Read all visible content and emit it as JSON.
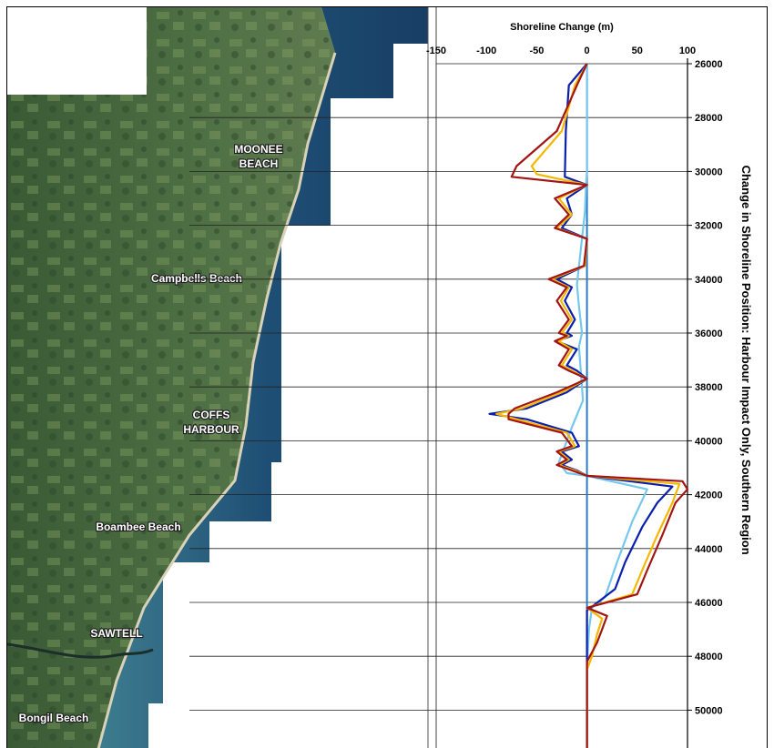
{
  "map": {
    "labels": [
      {
        "id": "moonee",
        "lines": [
          "MOONEE",
          "BEACH"
        ]
      },
      {
        "id": "campbells",
        "lines": [
          "Campbells Beach"
        ]
      },
      {
        "id": "coffs",
        "lines": [
          "COFFS",
          "HARBOUR"
        ]
      },
      {
        "id": "boambee",
        "lines": [
          "Boambee Beach"
        ]
      },
      {
        "id": "sawtell",
        "lines": [
          "SAWTELL"
        ]
      },
      {
        "id": "bongil",
        "lines": [
          "Bongil Beach"
        ]
      }
    ]
  },
  "colors": {
    "dark_red": "#a31515",
    "orange": "#f5b800",
    "dark_blue": "#0a1fae",
    "light_blue": "#74c8ee",
    "zero_line": "#2a7cc7"
  },
  "chart_data": {
    "type": "line",
    "title": "Shoreline Change (m)",
    "ylabel": "Change in Shoreline Position: Harbour Impact Only, Southern Region",
    "xlim": [
      -150,
      100
    ],
    "ylim": [
      26000,
      51500
    ],
    "y_inverted": true,
    "x_ticks": [
      -150,
      -100,
      -50,
      0,
      50,
      100
    ],
    "y_ticks": [
      26000,
      28000,
      30000,
      32000,
      34000,
      36000,
      38000,
      40000,
      42000,
      44000,
      46000,
      48000,
      50000
    ],
    "series": [
      {
        "color_key": "light_blue",
        "points": [
          [
            0,
            26000
          ],
          [
            0,
            30000
          ],
          [
            -1,
            30500
          ],
          [
            -2,
            31500
          ],
          [
            -5,
            32500
          ],
          [
            -10,
            34200
          ],
          [
            -8,
            35000
          ],
          [
            -5,
            36000
          ],
          [
            -8,
            36500
          ],
          [
            -6,
            37500
          ],
          [
            -4,
            38500
          ],
          [
            -15,
            39500
          ],
          [
            -28,
            40800
          ],
          [
            -20,
            41200
          ],
          [
            0,
            41300
          ],
          [
            60,
            41800
          ],
          [
            45,
            43000
          ],
          [
            30,
            44500
          ],
          [
            18,
            45800
          ],
          [
            5,
            46200
          ],
          [
            2,
            47000
          ],
          [
            0,
            48500
          ],
          [
            0,
            51500
          ]
        ]
      },
      {
        "color_key": "dark_blue",
        "points": [
          [
            0,
            26000
          ],
          [
            -18,
            26800
          ],
          [
            -21,
            28500
          ],
          [
            -22,
            30200
          ],
          [
            0,
            30500
          ],
          [
            -20,
            31000
          ],
          [
            -15,
            31600
          ],
          [
            -25,
            32100
          ],
          [
            0,
            32500
          ],
          [
            -2,
            33500
          ],
          [
            -30,
            34000
          ],
          [
            -15,
            34300
          ],
          [
            -22,
            34800
          ],
          [
            -12,
            35500
          ],
          [
            -20,
            36000
          ],
          [
            -15,
            36100
          ],
          [
            -30,
            36300
          ],
          [
            -10,
            36600
          ],
          [
            -20,
            37200
          ],
          [
            -10,
            37400
          ],
          [
            0,
            37700
          ],
          [
            -20,
            38200
          ],
          [
            -60,
            38800
          ],
          [
            -97,
            39000
          ],
          [
            -60,
            39200
          ],
          [
            -15,
            39700
          ],
          [
            -8,
            40200
          ],
          [
            -25,
            40400
          ],
          [
            -15,
            40700
          ],
          [
            -25,
            40900
          ],
          [
            -10,
            41100
          ],
          [
            0,
            41300
          ],
          [
            85,
            41700
          ],
          [
            70,
            42300
          ],
          [
            55,
            43200
          ],
          [
            38,
            44500
          ],
          [
            28,
            45500
          ],
          [
            0,
            46300
          ],
          [
            0,
            47000
          ],
          [
            0,
            51500
          ]
        ]
      },
      {
        "color_key": "orange",
        "points": [
          [
            0,
            26000
          ],
          [
            -12,
            26800
          ],
          [
            -25,
            28500
          ],
          [
            -55,
            29800
          ],
          [
            -50,
            30100
          ],
          [
            0,
            30500
          ],
          [
            -28,
            31000
          ],
          [
            -15,
            31600
          ],
          [
            -30,
            32100
          ],
          [
            0,
            32500
          ],
          [
            -2,
            33500
          ],
          [
            -35,
            34000
          ],
          [
            -18,
            34300
          ],
          [
            -26,
            34800
          ],
          [
            -15,
            35500
          ],
          [
            -25,
            36000
          ],
          [
            -18,
            36100
          ],
          [
            -28,
            36300
          ],
          [
            -15,
            36600
          ],
          [
            -25,
            37200
          ],
          [
            -15,
            37400
          ],
          [
            0,
            37700
          ],
          [
            -25,
            38200
          ],
          [
            -65,
            38800
          ],
          [
            -90,
            39000
          ],
          [
            -70,
            39200
          ],
          [
            -20,
            39700
          ],
          [
            -12,
            40200
          ],
          [
            -28,
            40400
          ],
          [
            -18,
            40700
          ],
          [
            -28,
            40900
          ],
          [
            -12,
            41100
          ],
          [
            0,
            41300
          ],
          [
            92,
            41600
          ],
          [
            85,
            42300
          ],
          [
            70,
            43500
          ],
          [
            55,
            44800
          ],
          [
            45,
            45700
          ],
          [
            0,
            46200
          ],
          [
            15,
            46600
          ],
          [
            10,
            47200
          ],
          [
            5,
            48000
          ],
          [
            0,
            48500
          ],
          [
            0,
            51500
          ]
        ]
      },
      {
        "color_key": "dark_red",
        "points": [
          [
            0,
            26000
          ],
          [
            -10,
            26800
          ],
          [
            -30,
            28500
          ],
          [
            -70,
            29800
          ],
          [
            -75,
            30200
          ],
          [
            0,
            30500
          ],
          [
            -32,
            31000
          ],
          [
            -18,
            31600
          ],
          [
            -32,
            32100
          ],
          [
            0,
            32500
          ],
          [
            -3,
            33500
          ],
          [
            -38,
            34000
          ],
          [
            -20,
            34300
          ],
          [
            -30,
            34800
          ],
          [
            -18,
            35500
          ],
          [
            -28,
            36000
          ],
          [
            -20,
            36100
          ],
          [
            -32,
            36300
          ],
          [
            -18,
            36600
          ],
          [
            -28,
            37200
          ],
          [
            -18,
            37400
          ],
          [
            0,
            37700
          ],
          [
            -30,
            38200
          ],
          [
            -72,
            38800
          ],
          [
            -78,
            39000
          ],
          [
            -78,
            39200
          ],
          [
            -25,
            39700
          ],
          [
            -15,
            40200
          ],
          [
            -30,
            40400
          ],
          [
            -20,
            40700
          ],
          [
            -30,
            40900
          ],
          [
            -15,
            41100
          ],
          [
            0,
            41300
          ],
          [
            95,
            41500
          ],
          [
            100,
            41800
          ],
          [
            88,
            42300
          ],
          [
            75,
            43500
          ],
          [
            60,
            44800
          ],
          [
            50,
            45700
          ],
          [
            0,
            46200
          ],
          [
            20,
            46500
          ],
          [
            15,
            47000
          ],
          [
            10,
            47500
          ],
          [
            0,
            48200
          ],
          [
            0,
            51500
          ]
        ]
      }
    ]
  }
}
